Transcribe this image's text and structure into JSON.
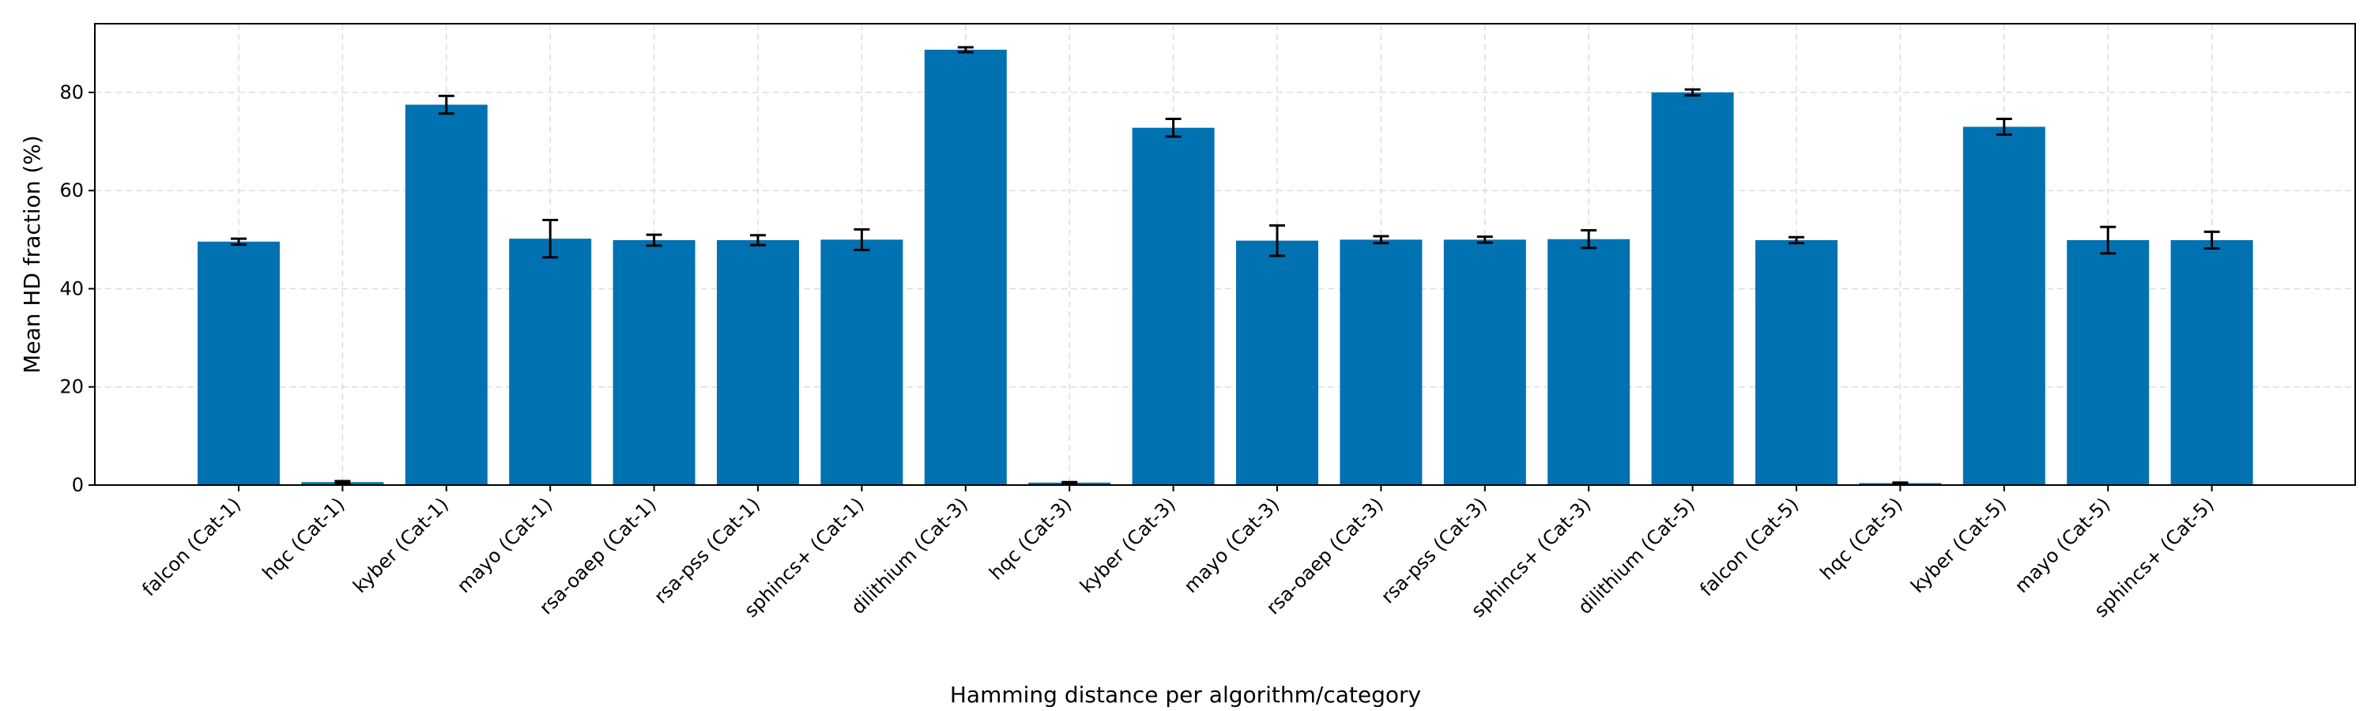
{
  "chart_data": {
    "type": "bar",
    "title": "",
    "xlabel": "Hamming distance per algorithm/category",
    "ylabel": "Mean HD fraction (%)",
    "ylim": [
      0,
      94
    ],
    "yticks": [
      0,
      20,
      40,
      60,
      80
    ],
    "grid": true,
    "bar_color": "#0072B2",
    "categories": [
      "falcon (Cat-1)",
      "hqc (Cat-1)",
      "kyber (Cat-1)",
      "mayo (Cat-1)",
      "rsa-oaep (Cat-1)",
      "rsa-pss (Cat-1)",
      "sphincs+ (Cat-1)",
      "dilithium (Cat-3)",
      "hqc (Cat-3)",
      "kyber (Cat-3)",
      "mayo (Cat-3)",
      "rsa-oaep (Cat-3)",
      "rsa-pss (Cat-3)",
      "sphincs+ (Cat-3)",
      "dilithium (Cat-5)",
      "falcon (Cat-5)",
      "hqc (Cat-5)",
      "kyber (Cat-5)",
      "mayo (Cat-5)",
      "sphincs+ (Cat-5)"
    ],
    "values": [
      49.6,
      0.6,
      77.5,
      50.2,
      49.9,
      49.9,
      50.0,
      88.7,
      0.5,
      72.8,
      49.8,
      50.0,
      50.0,
      50.1,
      80.0,
      49.9,
      0.4,
      73.0,
      49.9,
      49.9
    ],
    "errors": [
      0.6,
      0.2,
      1.8,
      3.8,
      1.1,
      1.0,
      2.1,
      0.5,
      0.1,
      1.8,
      3.1,
      0.7,
      0.6,
      1.8,
      0.6,
      0.6,
      0.1,
      1.6,
      2.7,
      1.7
    ]
  }
}
